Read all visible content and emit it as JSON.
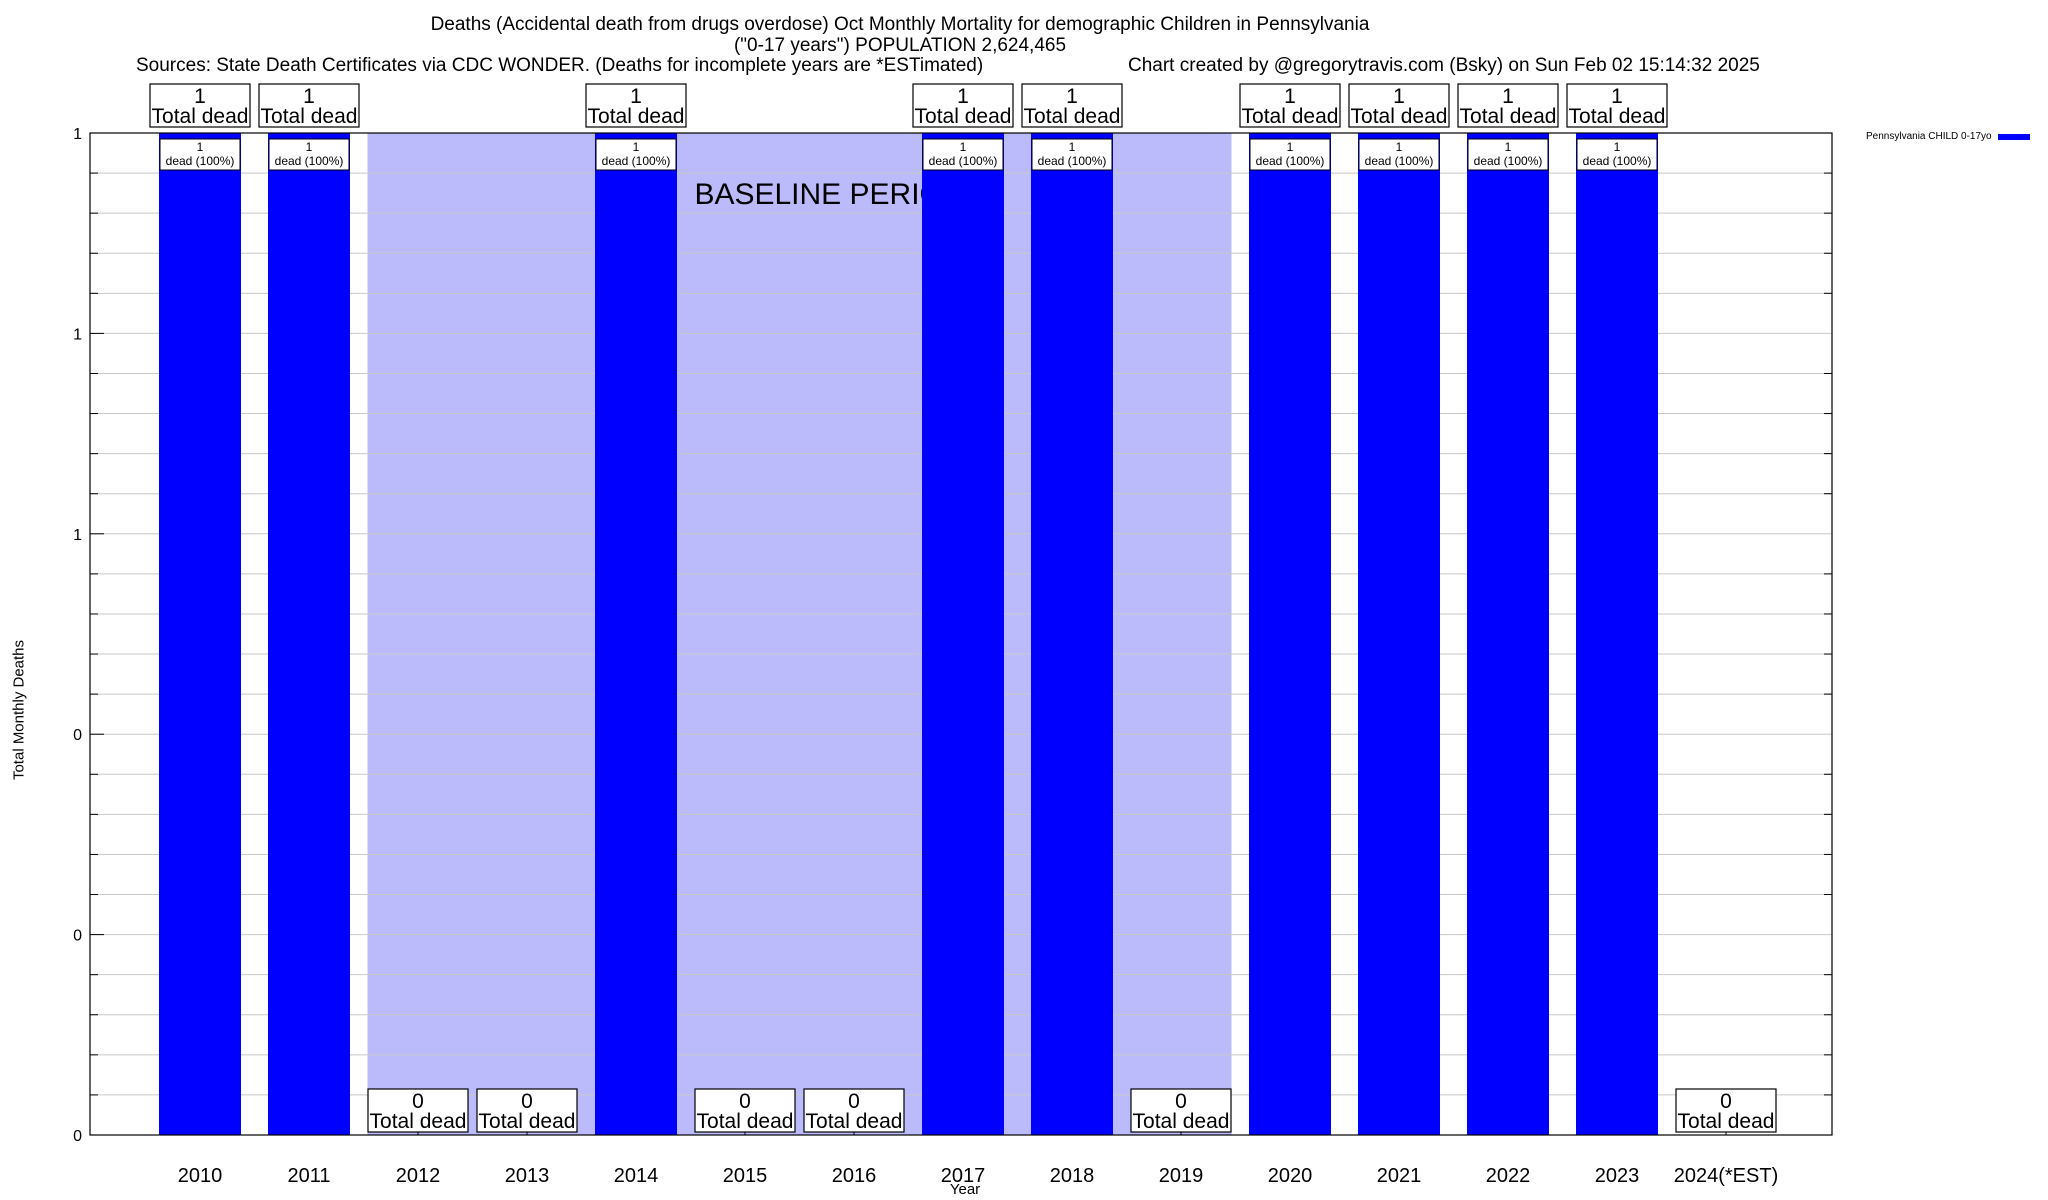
{
  "header": {
    "title_line1": "Deaths (Accidental death from drugs overdose) Oct Monthly Mortality for demographic Children in Pennsylvania",
    "title_line2": "(\"0-17 years\") POPULATION 2,624,465",
    "sources": "Sources: State Death Certificates via CDC WONDER. (Deaths for incomplete years are *ESTimated)",
    "credit": "Chart created by @gregorytravis.com (Bsky) on Sun Feb 02 15:14:32 2025"
  },
  "colors": {
    "bar": "#0000ff",
    "baseline_shade": "#bbbbfb",
    "grid": "#c8c8c8"
  },
  "chart_data": {
    "type": "bar",
    "title": "Deaths (Accidental death from drugs overdose) Oct Monthly Mortality for demographic Children in Pennsylvania",
    "xlabel": "Year",
    "ylabel": "Total Monthly Deaths",
    "ylim": [
      0,
      1
    ],
    "y_tick_values": [
      0,
      0.2,
      0.4,
      0.6,
      0.8,
      1.0
    ],
    "y_tick_labels": [
      "0",
      "0",
      "0",
      "1",
      "1",
      "1"
    ],
    "categories": [
      "2010",
      "2011",
      "2012",
      "2013",
      "2014",
      "2015",
      "2016",
      "2017",
      "2018",
      "2019",
      "2020",
      "2021",
      "2022",
      "2023",
      "2024(*EST)"
    ],
    "series": [
      {
        "name": "Pennsylvania CHILD 0-17yo",
        "values": [
          1,
          1,
          0,
          0,
          1,
          0,
          0,
          1,
          1,
          0,
          1,
          1,
          1,
          1,
          0
        ]
      }
    ],
    "total_label_suffix": "Total dead",
    "bar_labels": [
      "1\ndead (100%)",
      "1\ndead (100%)",
      "",
      "",
      "1\ndead (100%)",
      "",
      "",
      "1\ndead (100%)",
      "1\ndead (100%)",
      "",
      "1\ndead (100%)",
      "1\ndead (100%)",
      "1\ndead (100%)",
      "1\ndead (100%)",
      ""
    ],
    "baseline_period": {
      "label": "BASELINE PERIOD",
      "start": "2012",
      "end": "2019"
    },
    "legend": {
      "entries": [
        "Pennsylvania CHILD 0-17yo"
      ],
      "position": "top-right outside"
    },
    "grid": true
  }
}
